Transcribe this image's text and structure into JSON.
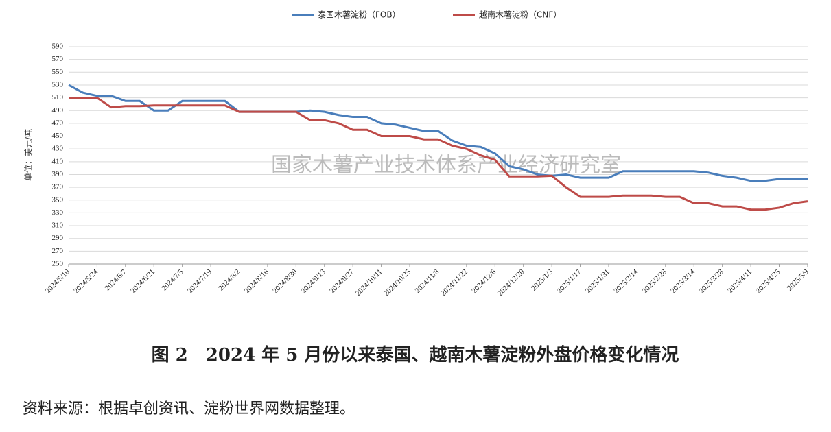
{
  "chart_data": {
    "type": "line",
    "y_label": "单位：美元/吨",
    "watermark": "国家木薯产业技术体系产业经济研究室",
    "caption": "图 2　2024 年 5 月份以来泰国、越南木薯淀粉外盘价格变化情况",
    "source": "资料来源：根据卓创资讯、淀粉世界网数据整理。",
    "categories": [
      "2024/5/10",
      null,
      "2024/5/24",
      null,
      "2024/6/7",
      null,
      "2024/6/21",
      null,
      "2024/7/5",
      null,
      "2024/7/19",
      null,
      "2024/8/2",
      null,
      "2024/8/16",
      null,
      "2024/8/30",
      null,
      "2024/9/13",
      null,
      "2024/9/27",
      null,
      "2024/10/11",
      null,
      "2024/10/25",
      null,
      "2024/11/8",
      null,
      "2024/11/22",
      null,
      "2024/12/6",
      null,
      "2024/12/20",
      null,
      "2025/1/3",
      null,
      "2025/1/17",
      null,
      "2025/1/31",
      null,
      "2025/2/14",
      null,
      "2025/2/28",
      null,
      "2025/3/14",
      null,
      "2025/3/28",
      null,
      "2025/4/11",
      null,
      "2025/4/25",
      null,
      "2025/5/9"
    ],
    "series": [
      {
        "name": "泰国木薯淀粉（FOB）",
        "color": "#4a7ebb",
        "values": [
          530,
          518,
          513,
          513,
          505,
          505,
          490,
          490,
          505,
          505,
          505,
          505,
          488,
          488,
          488,
          488,
          488,
          490,
          488,
          483,
          480,
          480,
          470,
          468,
          463,
          458,
          458,
          443,
          435,
          433,
          423,
          403,
          398,
          390,
          388,
          390,
          385,
          385,
          385,
          395,
          395,
          395,
          395,
          395,
          395,
          393,
          388,
          385,
          380,
          380,
          383,
          383,
          383
        ]
      },
      {
        "name": "越南木薯淀粉（CNF）",
        "color": "#be4b48",
        "values": [
          510,
          510,
          510,
          495,
          497,
          497,
          498,
          498,
          498,
          498,
          498,
          498,
          488,
          488,
          488,
          488,
          488,
          475,
          475,
          470,
          460,
          460,
          450,
          450,
          450,
          445,
          445,
          435,
          430,
          420,
          413,
          387,
          387,
          387,
          388,
          370,
          355,
          355,
          355,
          357,
          357,
          357,
          355,
          355,
          345,
          345,
          340,
          340,
          335,
          335,
          338,
          345,
          348
        ]
      }
    ],
    "ylim": [
      250,
      590
    ],
    "yticks": [
      250,
      270,
      290,
      310,
      330,
      350,
      370,
      390,
      410,
      430,
      450,
      470,
      490,
      510,
      530,
      550,
      570,
      590
    ],
    "grid": true
  }
}
